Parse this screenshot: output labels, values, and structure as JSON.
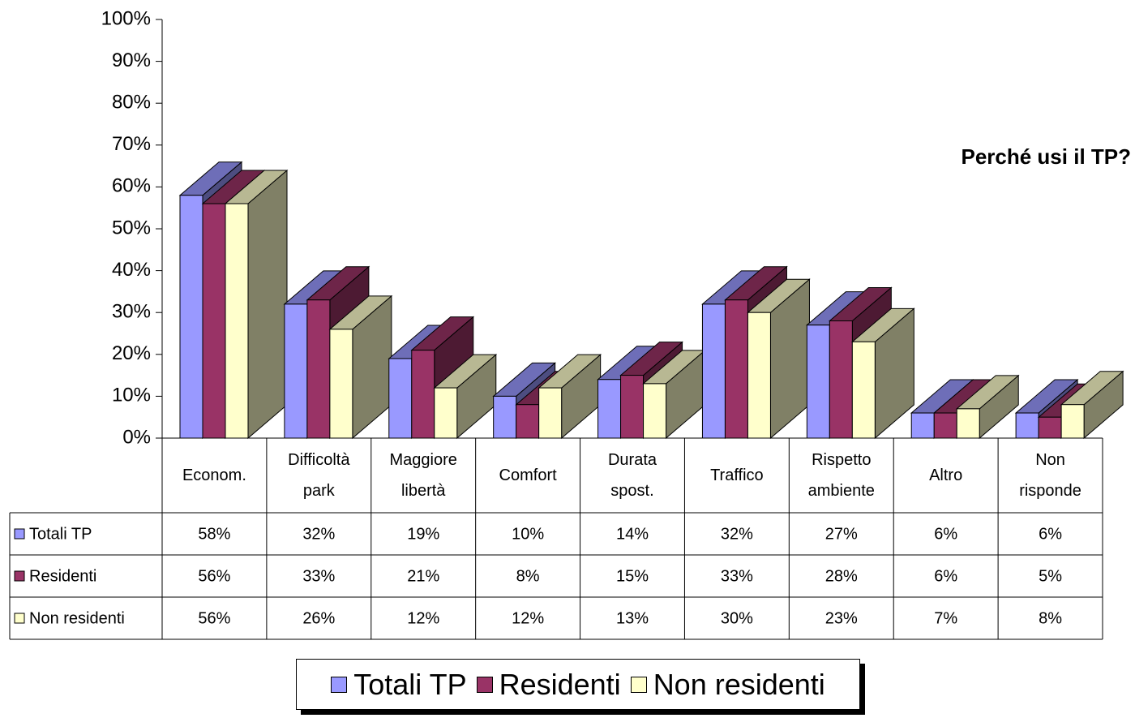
{
  "chart_data": {
    "type": "bar3d",
    "title": "Perché usi il TP?",
    "categories": [
      "Econom.",
      "Difficoltà park",
      "Maggiore libertà",
      "Comfort",
      "Durata spost.",
      "Traffico",
      "Rispetto ambiente",
      "Altro",
      "Non risponde"
    ],
    "series": [
      {
        "name": "Totali TP",
        "color": "#9999ff",
        "values": [
          58,
          32,
          19,
          10,
          14,
          32,
          27,
          6,
          6
        ],
        "value_labels": [
          "58%",
          "32%",
          "19%",
          "10%",
          "14%",
          "32%",
          "27%",
          "6%",
          "6%"
        ]
      },
      {
        "name": "Residenti",
        "color": "#993366",
        "values": [
          56,
          33,
          21,
          8,
          15,
          33,
          28,
          6,
          5
        ],
        "value_labels": [
          "56%",
          "33%",
          "21%",
          "8%",
          "15%",
          "33%",
          "28%",
          "6%",
          "5%"
        ]
      },
      {
        "name": "Non residenti",
        "color": "#ffffcc",
        "values": [
          56,
          26,
          12,
          12,
          13,
          30,
          23,
          7,
          8
        ],
        "value_labels": [
          "56%",
          "26%",
          "12%",
          "12%",
          "13%",
          "30%",
          "23%",
          "7%",
          "8%"
        ]
      }
    ],
    "ylim": [
      0,
      100
    ],
    "yticks": [
      {
        "value": 0,
        "label": "0%"
      },
      {
        "value": 10,
        "label": "10%"
      },
      {
        "value": 20,
        "label": "20%"
      },
      {
        "value": 30,
        "label": "30%"
      },
      {
        "value": 40,
        "label": "40%"
      },
      {
        "value": 50,
        "label": "50%"
      },
      {
        "value": 60,
        "label": "60%"
      },
      {
        "value": 70,
        "label": "70%"
      },
      {
        "value": 80,
        "label": "80%"
      },
      {
        "value": 90,
        "label": "90%"
      },
      {
        "value": 100,
        "label": "100%"
      }
    ]
  }
}
